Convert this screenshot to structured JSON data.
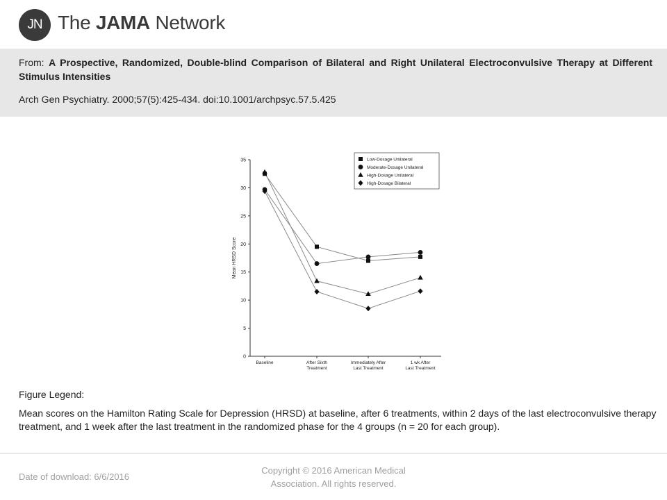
{
  "header": {
    "logo_text": "JN",
    "brand_prefix": "The ",
    "brand_bold": "JAMA",
    "brand_suffix": " Network"
  },
  "citation": {
    "from_label": "From:",
    "title": "A Prospective, Randomized, Double-blind Comparison of Bilateral and Right Unilateral Electroconvulsive Therapy at Different Stimulus Intensities",
    "reference": "Arch Gen Psychiatry. 2000;57(5):425-434. doi:10.1001/archpsyc.57.5.425"
  },
  "figure": {
    "legend_label": "Figure Legend:",
    "legend_text": "Mean scores on the Hamilton Rating Scale for Depression (HRSD) at baseline, after 6 treatments, within 2 days of the last electroconvulsive therapy treatment, and 1 week after the last treatment in the randomized phase for the 4 groups (n = 20 for each group)."
  },
  "footer": {
    "download": "Date of download:  6/6/2016",
    "copyright_line1": "Copyright © 2016 American Medical",
    "copyright_line2": "Association. All rights reserved."
  },
  "chart_data": {
    "type": "line",
    "title": "",
    "xlabel": "",
    "ylabel": "Mean HRSD Score",
    "ylim": [
      0,
      35
    ],
    "yticks": [
      0,
      5,
      10,
      15,
      20,
      25,
      30,
      35
    ],
    "categories": [
      [
        "Baseline"
      ],
      [
        "After Sixth",
        "Treatment"
      ],
      [
        "Immediately After",
        "Last Treatment"
      ],
      [
        "1 wk After",
        "Last Treatment"
      ]
    ],
    "legend_position": "top-right",
    "grid": false,
    "series": [
      {
        "name": "Low-Dosage Unilateral",
        "marker": "square",
        "values": [
          32.5,
          19.5,
          17,
          17.7
        ]
      },
      {
        "name": "Moderate-Dosage Unilateral",
        "marker": "circle",
        "values": [
          29.7,
          16.5,
          17.7,
          18.5
        ]
      },
      {
        "name": "High-Dosage Unilateral",
        "marker": "triangle",
        "values": [
          32.8,
          13.4,
          11.1,
          14
        ]
      },
      {
        "name": "High-Dosage Bilateral",
        "marker": "diamond",
        "values": [
          29.4,
          11.5,
          8.5,
          11.6
        ]
      }
    ]
  }
}
